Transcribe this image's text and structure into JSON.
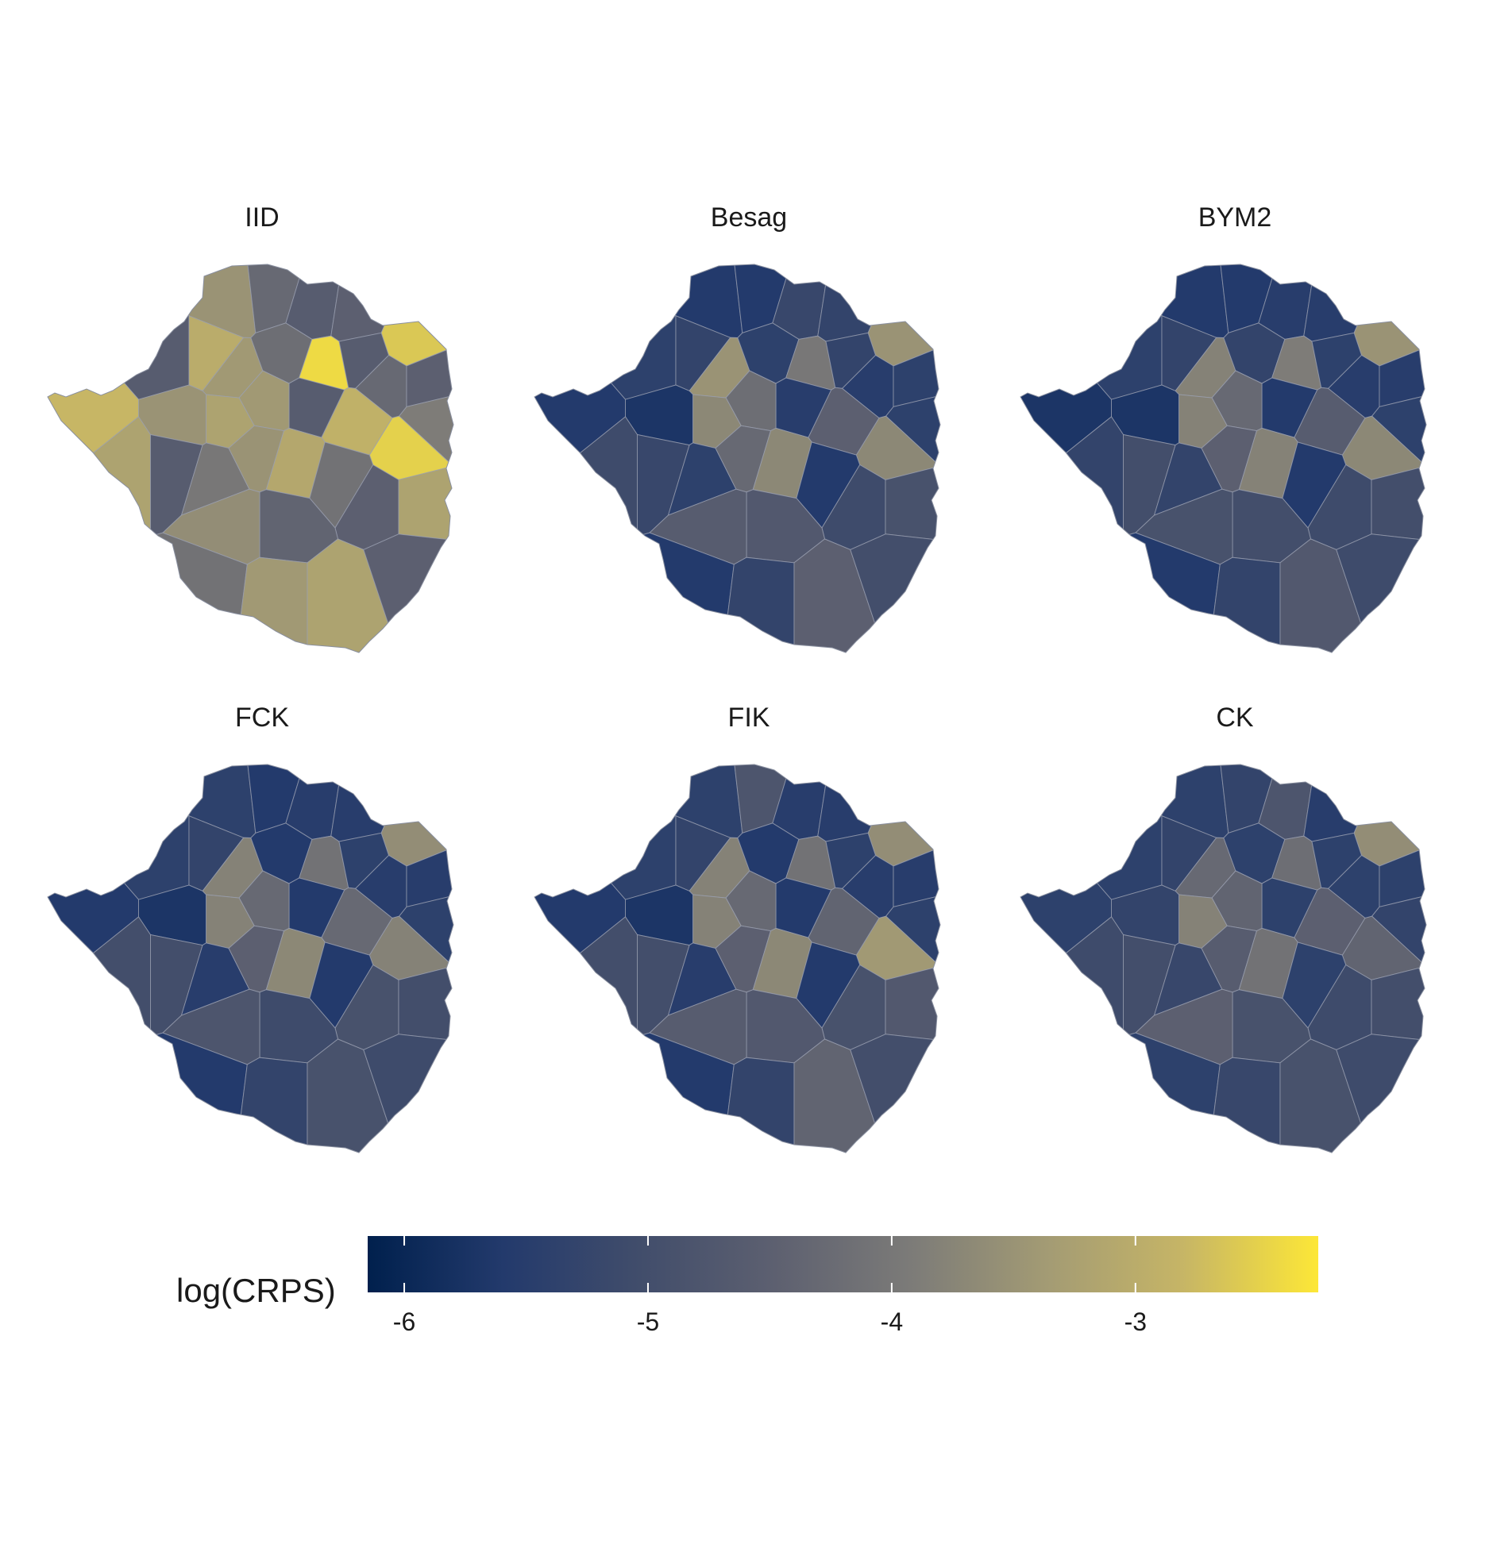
{
  "chart_data": {
    "type": "choropleth",
    "panels": [
      "IID",
      "Besag",
      "BYM2",
      "FCK",
      "FIK",
      "CK"
    ],
    "legend": {
      "title": "log(CRPS)",
      "min": -6.15,
      "max": -2.25,
      "ticks": [
        -6,
        -5,
        -4,
        -3
      ],
      "tick_labels": [
        "-6",
        "-5",
        "-4",
        "-3"
      ],
      "colors": [
        "#00204d",
        "#233a6c",
        "#414d6b",
        "#5d6070",
        "#7c7b78",
        "#a39b74",
        "#c6b566",
        "#fde737"
      ]
    },
    "regions": {
      "IID": [
        -3.5,
        -4.3,
        -4.6,
        -4.5,
        -2.6,
        -4.6,
        -3.0,
        -3.4,
        -4.2,
        -2.4,
        -4.6,
        -4.3,
        -4.5,
        -3.9,
        -2.5,
        -2.9,
        -4.6,
        -3.4,
        -3.2,
        -3.5,
        -2.8,
        -3.2,
        -4.6,
        -4.0,
        -3.5,
        -3.1,
        -4.1,
        -4.5,
        -3.2,
        -4.4,
        -3.6,
        -4.1,
        -3.4,
        -3.2,
        -4.5
      ],
      "Besag": [
        -5.6,
        -5.6,
        -5.2,
        -5.3,
        -3.5,
        -5.4,
        -5.3,
        -3.5,
        -5.4,
        -4.0,
        -5.3,
        -5.5,
        -5.4,
        -5.4,
        -3.7,
        -4.5,
        -5.5,
        -4.2,
        -3.7,
        -5.7,
        -5.6,
        -5.1,
        -5.2,
        -5.4,
        -4.3,
        -3.7,
        -5.6,
        -5.1,
        -4.9,
        -4.7,
        -4.6,
        -5.6,
        -5.3,
        -4.5,
        -5.0
      ],
      "BYM2": [
        -5.6,
        -5.6,
        -5.5,
        -5.5,
        -3.5,
        -5.4,
        -5.3,
        -3.8,
        -5.3,
        -3.9,
        -5.4,
        -5.5,
        -5.5,
        -5.4,
        -3.7,
        -4.6,
        -5.6,
        -4.3,
        -3.8,
        -5.7,
        -5.7,
        -5.3,
        -5.0,
        -5.3,
        -4.5,
        -3.8,
        -5.6,
        -5.1,
        -5.0,
        -5.0,
        -4.9,
        -5.6,
        -5.3,
        -4.7,
        -5.1
      ],
      "FCK": [
        -5.4,
        -5.6,
        -5.5,
        -5.5,
        -3.6,
        -5.4,
        -5.3,
        -3.8,
        -5.6,
        -4.1,
        -5.4,
        -5.5,
        -5.5,
        -5.4,
        -3.8,
        -4.3,
        -5.6,
        -4.3,
        -3.8,
        -5.7,
        -5.6,
        -5.0,
        -5.0,
        -5.5,
        -4.5,
        -3.7,
        -5.6,
        -4.9,
        -5.0,
        -5.1,
        -4.8,
        -5.6,
        -5.3,
        -4.9,
        -5.1
      ],
      "FIK": [
        -5.4,
        -4.8,
        -5.5,
        -5.5,
        -3.6,
        -5.4,
        -5.3,
        -3.8,
        -5.6,
        -4.1,
        -5.4,
        -5.5,
        -5.5,
        -5.4,
        -3.4,
        -4.4,
        -5.6,
        -4.3,
        -3.8,
        -5.7,
        -5.6,
        -5.0,
        -5.0,
        -5.5,
        -4.5,
        -3.7,
        -5.6,
        -4.9,
        -4.7,
        -4.7,
        -4.6,
        -5.6,
        -5.3,
        -4.4,
        -5.0
      ],
      "CK": [
        -5.4,
        -5.3,
        -4.8,
        -5.5,
        -3.6,
        -5.4,
        -5.3,
        -4.3,
        -5.4,
        -4.2,
        -5.4,
        -5.4,
        -5.4,
        -5.3,
        -4.4,
        -4.5,
        -5.4,
        -4.4,
        -3.8,
        -5.3,
        -5.4,
        -5.1,
        -5.0,
        -5.2,
        -4.6,
        -4.1,
        -5.4,
        -5.1,
        -5.0,
        -4.9,
        -4.5,
        -5.4,
        -5.2,
        -4.9,
        -5.1
      ]
    }
  }
}
